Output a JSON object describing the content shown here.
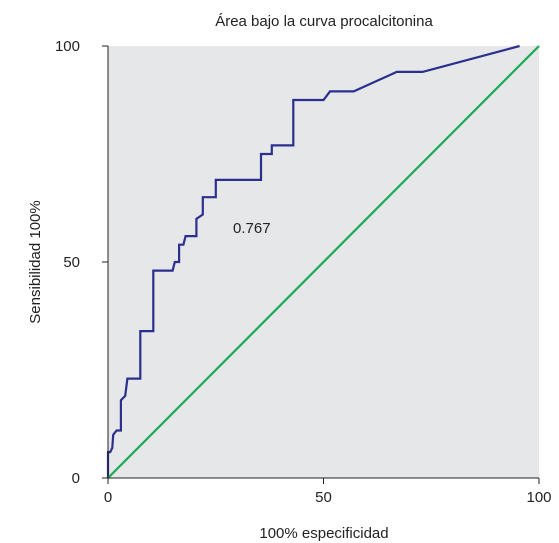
{
  "chart_data": {
    "type": "line",
    "title": "Área bajo la curva procalcitonina",
    "xlabel": "100% especificidad",
    "ylabel": "Sensibilidad 100%",
    "xlim": [
      0,
      100
    ],
    "ylim": [
      0,
      100
    ],
    "x_ticks": [
      "0",
      "50",
      "100"
    ],
    "y_ticks": [
      "0",
      "50",
      "100"
    ],
    "grid": false,
    "plot_background": "#e6e7e8",
    "annotation": "0.767",
    "series": [
      {
        "color": "#2b2f8e",
        "points": [
          [
            0,
            0
          ],
          [
            0,
            6
          ],
          [
            0.5,
            6
          ],
          [
            1,
            7
          ],
          [
            1.2,
            10
          ],
          [
            2,
            11
          ],
          [
            3,
            11
          ],
          [
            3,
            18
          ],
          [
            4,
            19
          ],
          [
            4.5,
            23
          ],
          [
            7.5,
            23
          ],
          [
            7.5,
            34
          ],
          [
            10.5,
            34
          ],
          [
            10.5,
            48
          ],
          [
            15,
            48
          ],
          [
            15.5,
            50
          ],
          [
            16.5,
            50
          ],
          [
            16.5,
            54
          ],
          [
            17.5,
            54
          ],
          [
            18,
            56
          ],
          [
            20.5,
            56
          ],
          [
            20.5,
            60
          ],
          [
            22,
            61
          ],
          [
            22,
            65
          ],
          [
            25,
            65
          ],
          [
            25,
            69
          ],
          [
            35.5,
            69
          ],
          [
            35.5,
            75
          ],
          [
            38,
            75
          ],
          [
            38,
            77
          ],
          [
            43,
            77
          ],
          [
            43,
            87.5
          ],
          [
            50,
            87.5
          ],
          [
            51.5,
            89.5
          ],
          [
            57,
            89.5
          ],
          [
            67,
            94
          ],
          [
            73,
            94
          ],
          [
            95.5,
            100
          ]
        ]
      },
      {
        "color": "#1aaa55",
        "points": [
          [
            0,
            0
          ],
          [
            100,
            100
          ]
        ]
      }
    ]
  }
}
